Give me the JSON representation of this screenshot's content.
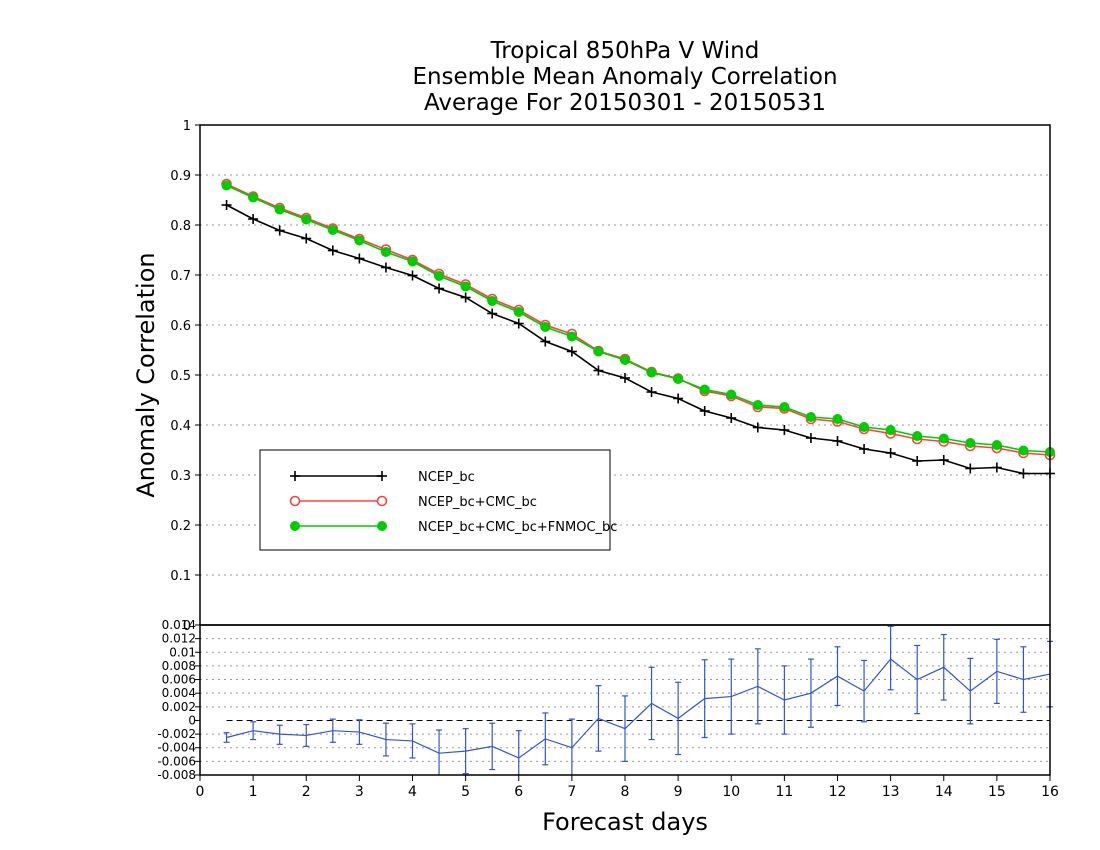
{
  "chart_data": [
    {
      "type": "line",
      "title": [
        "Tropical 850hPa V Wind",
        "Ensemble Mean Anomaly Correlation",
        "Average For 20150301 - 20150531"
      ],
      "xlabel": "Forecast days",
      "ylabel": "Anomaly Correlation",
      "xlim": [
        0,
        16
      ],
      "ylim": [
        0,
        1
      ],
      "xticks": [
        "0",
        "1",
        "2",
        "3",
        "4",
        "5",
        "6",
        "7",
        "8",
        "9",
        "10",
        "11",
        "12",
        "13",
        "14",
        "15",
        "16"
      ],
      "yticks": [
        "0",
        "0.1",
        "0.2",
        "0.3",
        "0.4",
        "0.5",
        "0.6",
        "0.7",
        "0.8",
        "0.9",
        "1"
      ],
      "grid": "horizontal dotted",
      "legend_position": "lower-left",
      "x": [
        0.5,
        1,
        1.5,
        2,
        2.5,
        3,
        3.5,
        4,
        4.5,
        5,
        5.5,
        6,
        6.5,
        7,
        7.5,
        8,
        8.5,
        9,
        9.5,
        10,
        10.5,
        11,
        11.5,
        12,
        12.5,
        13,
        13.5,
        14,
        14.5,
        15,
        15.5,
        16
      ],
      "series": [
        {
          "name": "NCEP_bc",
          "color": "#000000",
          "marker": "plus",
          "values": [
            0.84,
            0.812,
            0.789,
            0.773,
            0.749,
            0.733,
            0.715,
            0.699,
            0.673,
            0.655,
            0.623,
            0.603,
            0.567,
            0.547,
            0.509,
            0.494,
            0.466,
            0.453,
            0.428,
            0.414,
            0.395,
            0.39,
            0.374,
            0.368,
            0.352,
            0.344,
            0.328,
            0.33,
            0.313,
            0.315,
            0.303,
            0.303
          ]
        },
        {
          "name": "NCEP_bc+CMC_bc",
          "color": "#ff4040",
          "marker": "open-circle",
          "values": [
            0.882,
            0.857,
            0.834,
            0.814,
            0.793,
            0.772,
            0.751,
            0.73,
            0.702,
            0.681,
            0.652,
            0.63,
            0.6,
            0.582,
            0.548,
            0.532,
            0.506,
            0.493,
            0.468,
            0.458,
            0.436,
            0.433,
            0.412,
            0.407,
            0.392,
            0.383,
            0.372,
            0.367,
            0.358,
            0.354,
            0.344,
            0.34
          ]
        },
        {
          "name": "NCEP_bc+CMC_bc+FNMOC_bc",
          "color": "#00cc00",
          "marker": "filled-circle",
          "values": [
            0.879,
            0.855,
            0.831,
            0.811,
            0.79,
            0.769,
            0.746,
            0.727,
            0.698,
            0.677,
            0.648,
            0.626,
            0.596,
            0.577,
            0.547,
            0.53,
            0.505,
            0.492,
            0.471,
            0.461,
            0.44,
            0.436,
            0.416,
            0.412,
            0.396,
            0.39,
            0.378,
            0.373,
            0.364,
            0.36,
            0.349,
            0.346
          ]
        }
      ]
    },
    {
      "type": "line",
      "subtype": "difference with error bars",
      "xlim": [
        0,
        16
      ],
      "ylim": [
        -0.008,
        0.014
      ],
      "yticks": [
        "-0.008",
        "-0.006",
        "-0.004",
        "-0.002",
        "0",
        "0.002",
        "0.004",
        "0.006",
        "0.008",
        "0.01",
        "0.012",
        "0.014"
      ],
      "grid": "horizontal dotted",
      "zero_line": "dashed",
      "series": [
        {
          "color": "#3355cc",
          "x": [
            0.5,
            1,
            1.5,
            2,
            2.5,
            3,
            3.5,
            4,
            4.5,
            5,
            5.5,
            6,
            6.5,
            7,
            7.5,
            8,
            8.5,
            9,
            9.5,
            10,
            10.5,
            11,
            11.5,
            12,
            12.5,
            13,
            13.5,
            14,
            14.5,
            15,
            15.5,
            16
          ],
          "values": [
            -0.0025,
            -0.0015,
            -0.002,
            -0.0022,
            -0.0015,
            -0.0017,
            -0.0028,
            -0.003,
            -0.0048,
            -0.0045,
            -0.0038,
            -0.0055,
            -0.0027,
            -0.004,
            0.0003,
            -0.0012,
            0.0025,
            0.0003,
            0.0032,
            0.0035,
            0.005,
            0.003,
            0.004,
            0.0065,
            0.0043,
            0.009,
            0.006,
            0.0078,
            0.0043,
            0.0072,
            0.006,
            0.0068
          ],
          "error_low": [
            -0.0032,
            -0.0028,
            -0.0035,
            -0.0038,
            -0.0032,
            -0.0035,
            -0.0052,
            -0.0055,
            -0.0082,
            -0.0078,
            -0.0072,
            -0.0095,
            -0.0065,
            -0.0082,
            -0.0045,
            -0.006,
            -0.0028,
            -0.005,
            -0.0025,
            -0.002,
            -0.0005,
            -0.002,
            -0.001,
            0.0022,
            -0.0002,
            0.0045,
            0.001,
            0.003,
            -0.0005,
            0.0025,
            0.0012,
            0.002
          ],
          "error_high": [
            -0.0018,
            -0.0002,
            -0.0007,
            -0.0006,
            0.0002,
            0.0001,
            -0.0004,
            -0.0005,
            -0.0014,
            -0.0012,
            -0.0004,
            -0.0015,
            0.0011,
            0.0002,
            0.0051,
            0.0036,
            0.0078,
            0.0056,
            0.0089,
            0.009,
            0.0105,
            0.008,
            0.009,
            0.0108,
            0.0088,
            0.0138,
            0.011,
            0.0126,
            0.0091,
            0.0119,
            0.0108,
            0.0116
          ]
        }
      ]
    }
  ]
}
